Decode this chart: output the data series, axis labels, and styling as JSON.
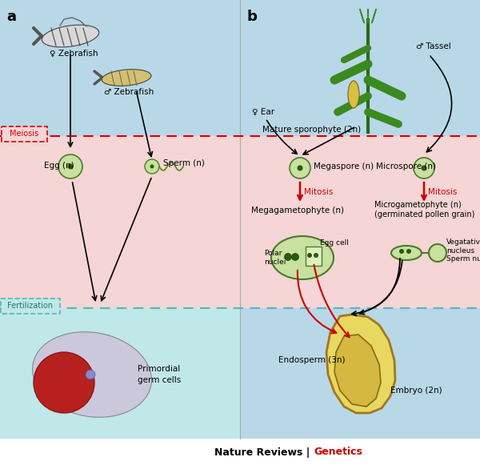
{
  "fig_width": 6.0,
  "fig_height": 5.86,
  "dpi": 100,
  "bg_top": "#b8d8e8",
  "bg_meiosis": "#f5d5d5",
  "bg_fertilization_left": "#c0e8e8",
  "bg_bottom_right": "#b8d8e8",
  "red_arrow": "#cc0000",
  "dashed_red": "#dd0000",
  "dashed_teal": "#50b8c0",
  "panel_a_label": "a",
  "panel_b_label": "b",
  "meiosis_label": "Meiosis",
  "fertilization_label": "Fertilization",
  "footer_left": "Nature Reviews",
  "footer_right": "Genetics",
  "footer_sep": " | ",
  "label_female_zebrafish": "♀ Zebrafish",
  "label_male_zebrafish": "♂ Zebrafish",
  "label_egg": "Egg (n)",
  "label_sperm": "Sperm (n)",
  "label_primordial": "Primordial\ngerm cells",
  "label_female_ear": "♀ Ear",
  "label_male_tassel": "♂ Tassel",
  "label_mature_sporophyte": "Mature sporophyte (2n)",
  "label_megaspore": "Megaspore (n)",
  "label_microspore": "Microspore (n)",
  "label_mitosis_left": "Mitosis",
  "label_mitosis_right": "Mitosis",
  "label_megagametophyte": "Megagametophyte (n)",
  "label_microgametophyte": "Microgametophyte (n)\n(germinated pollen grain)",
  "label_egg_cell": "Egg cell",
  "label_polar_nuclei": "Polar\nnuclei",
  "label_vegetative": "Vegatative\nnucleus",
  "label_sperm_nuclei": "Sperm nuclei",
  "label_endosperm": "Endosperm (3n)",
  "label_embryo": "Embryo (2n)",
  "cell_color": "#c8e0a0",
  "cell_edge": "#4a7a2a"
}
